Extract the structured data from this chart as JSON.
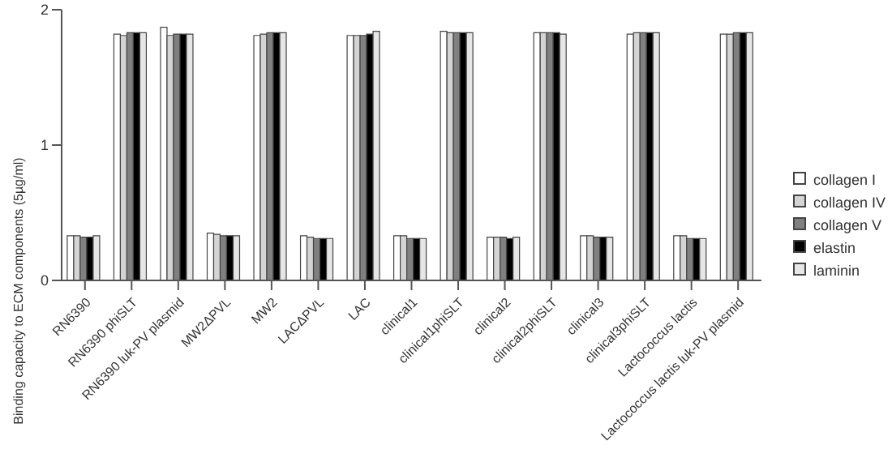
{
  "chart_data": {
    "type": "bar",
    "ylabel": "Binding capacity  to ECM components (5µg/ml)",
    "categories": [
      "RN6390",
      "RN6390 phiSLT",
      "RN6390 luk-PV plasmid",
      "MW2ΔPVL",
      "MW2",
      "LACΔPVL",
      "LAC",
      "clinical1",
      "clinical1phiSLT",
      "clinical2",
      "clinical2phiSLT",
      "clinical3",
      "clinical3phiSLT",
      "Lactococcus lactis",
      "Lactococcus lactis luk-PV plasmid"
    ],
    "series": [
      {
        "name": "collagen I",
        "color": "#ffffff",
        "values": [
          0.33,
          1.82,
          1.87,
          0.35,
          1.81,
          0.33,
          1.81,
          0.33,
          1.84,
          0.32,
          1.83,
          0.33,
          1.82,
          0.33,
          1.82
        ]
      },
      {
        "name": "collagen IV",
        "color": "#d4d4d4",
        "values": [
          0.33,
          1.81,
          1.81,
          0.34,
          1.82,
          0.32,
          1.81,
          0.33,
          1.83,
          0.32,
          1.83,
          0.33,
          1.83,
          0.33,
          1.82
        ]
      },
      {
        "name": "collagen V",
        "color": "#808080",
        "values": [
          0.32,
          1.83,
          1.82,
          0.33,
          1.83,
          0.31,
          1.81,
          0.31,
          1.83,
          0.32,
          1.83,
          0.32,
          1.83,
          0.31,
          1.83
        ]
      },
      {
        "name": "elastin",
        "color": "#000000",
        "values": [
          0.32,
          1.83,
          1.82,
          0.33,
          1.83,
          0.31,
          1.82,
          0.31,
          1.83,
          0.31,
          1.83,
          0.32,
          1.83,
          0.31,
          1.83
        ]
      },
      {
        "name": "laminin",
        "color": "#e6e6e6",
        "values": [
          0.33,
          1.83,
          1.82,
          0.33,
          1.83,
          0.31,
          1.84,
          0.31,
          1.83,
          0.32,
          1.82,
          0.32,
          1.83,
          0.31,
          1.83
        ]
      }
    ],
    "ylim": [
      0,
      2
    ],
    "yticks": [
      0,
      1,
      2
    ],
    "grid": false,
    "legend": "right"
  }
}
